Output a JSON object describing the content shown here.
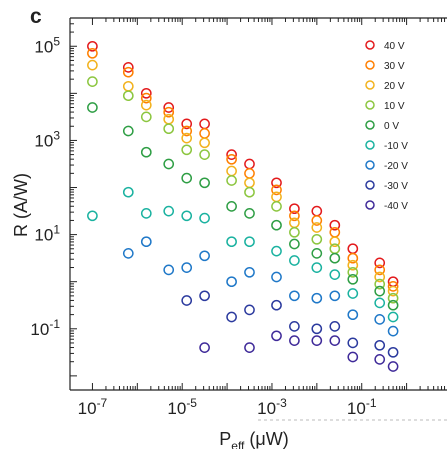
{
  "panel_label": "c",
  "chart_data": {
    "type": "scatter",
    "title": "",
    "xlabel": "P",
    "xlabel_subscript": "eff",
    "xlabel_unit": "(μW)",
    "ylabel": "R (A/W)",
    "xscale": "log",
    "yscale": "log",
    "xlim_exp": [
      -7.5,
      0.9
    ],
    "ylim_exp": [
      -2.3,
      5.6
    ],
    "x_ticks": [
      {
        "exp": -7,
        "base": "10",
        "sup": "-7"
      },
      {
        "exp": -5,
        "base": "10",
        "sup": "-5"
      },
      {
        "exp": -3,
        "base": "10",
        "sup": "-3"
      },
      {
        "exp": -1,
        "base": "10",
        "sup": "-1"
      }
    ],
    "y_ticks": [
      {
        "exp": 5,
        "base": "10",
        "sup": "5"
      },
      {
        "exp": 3,
        "base": "10",
        "sup": "3"
      },
      {
        "exp": 1,
        "base": "10",
        "sup": "1"
      },
      {
        "exp": -1,
        "base": "10",
        "sup": "-1"
      }
    ],
    "marker": "open-circle",
    "grid": false,
    "legend_position": "top-right",
    "x_exp": [
      -7.0,
      -6.2,
      -5.8,
      -5.3,
      -4.9,
      -4.5,
      -3.9,
      -3.5,
      -2.9,
      -2.5,
      -2.0,
      -1.6,
      -1.2,
      -0.6,
      -0.3
    ],
    "series": [
      {
        "name": "40 V",
        "color": "#e31a1c",
        "y_exp": [
          5.0,
          4.55,
          4.0,
          3.7,
          3.35,
          3.35,
          2.7,
          2.5,
          2.1,
          1.55,
          1.5,
          1.2,
          0.7,
          0.4,
          0.0
        ]
      },
      {
        "name": "30 V",
        "color": "#ff7f00",
        "y_exp": [
          4.85,
          4.45,
          3.9,
          3.6,
          3.2,
          3.15,
          2.6,
          2.3,
          1.95,
          1.4,
          1.3,
          1.05,
          0.5,
          0.25,
          -0.1
        ]
      },
      {
        "name": "20 V",
        "color": "#f2b21d",
        "y_exp": [
          4.6,
          4.15,
          3.75,
          3.45,
          3.05,
          2.95,
          2.35,
          2.1,
          1.8,
          1.25,
          1.15,
          0.85,
          0.35,
          0.1,
          -0.2
        ]
      },
      {
        "name": "10 V",
        "color": "#8cc63f",
        "y_exp": [
          4.25,
          3.95,
          3.5,
          3.25,
          2.8,
          2.7,
          2.15,
          1.9,
          1.6,
          1.05,
          0.9,
          0.7,
          0.2,
          -0.05,
          -0.35
        ]
      },
      {
        "name": "0 V",
        "color": "#2e9e44",
        "y_exp": [
          3.7,
          3.2,
          2.75,
          2.5,
          2.2,
          2.1,
          1.6,
          1.45,
          1.2,
          0.8,
          0.6,
          0.5,
          0.05,
          -0.2,
          -0.5
        ]
      },
      {
        "name": "-10 V",
        "color": "#1ab2a0",
        "y_exp": [
          1.4,
          1.9,
          1.45,
          1.5,
          1.4,
          1.35,
          0.85,
          0.85,
          0.65,
          0.45,
          0.3,
          0.15,
          -0.25,
          -0.45,
          -0.75
        ]
      },
      {
        "name": "-20 V",
        "color": "#1f78c8",
        "y_exp": [
          null,
          0.6,
          0.85,
          0.25,
          0.3,
          0.55,
          0.0,
          0.2,
          0.1,
          -0.3,
          -0.35,
          -0.3,
          -0.7,
          -0.8,
          -1.05
        ]
      },
      {
        "name": "-30 V",
        "color": "#2b3a9e",
        "y_exp": [
          null,
          null,
          null,
          null,
          -0.4,
          -0.3,
          -0.75,
          -0.6,
          -0.5,
          -0.95,
          -1.0,
          -0.95,
          -1.3,
          -1.35,
          -1.5
        ]
      },
      {
        "name": "-40 V",
        "color": "#3f2a99",
        "y_exp": [
          null,
          null,
          null,
          null,
          null,
          -1.4,
          null,
          -1.4,
          -1.15,
          -1.25,
          -1.25,
          -1.25,
          -1.6,
          -1.65,
          -1.8
        ]
      }
    ]
  }
}
